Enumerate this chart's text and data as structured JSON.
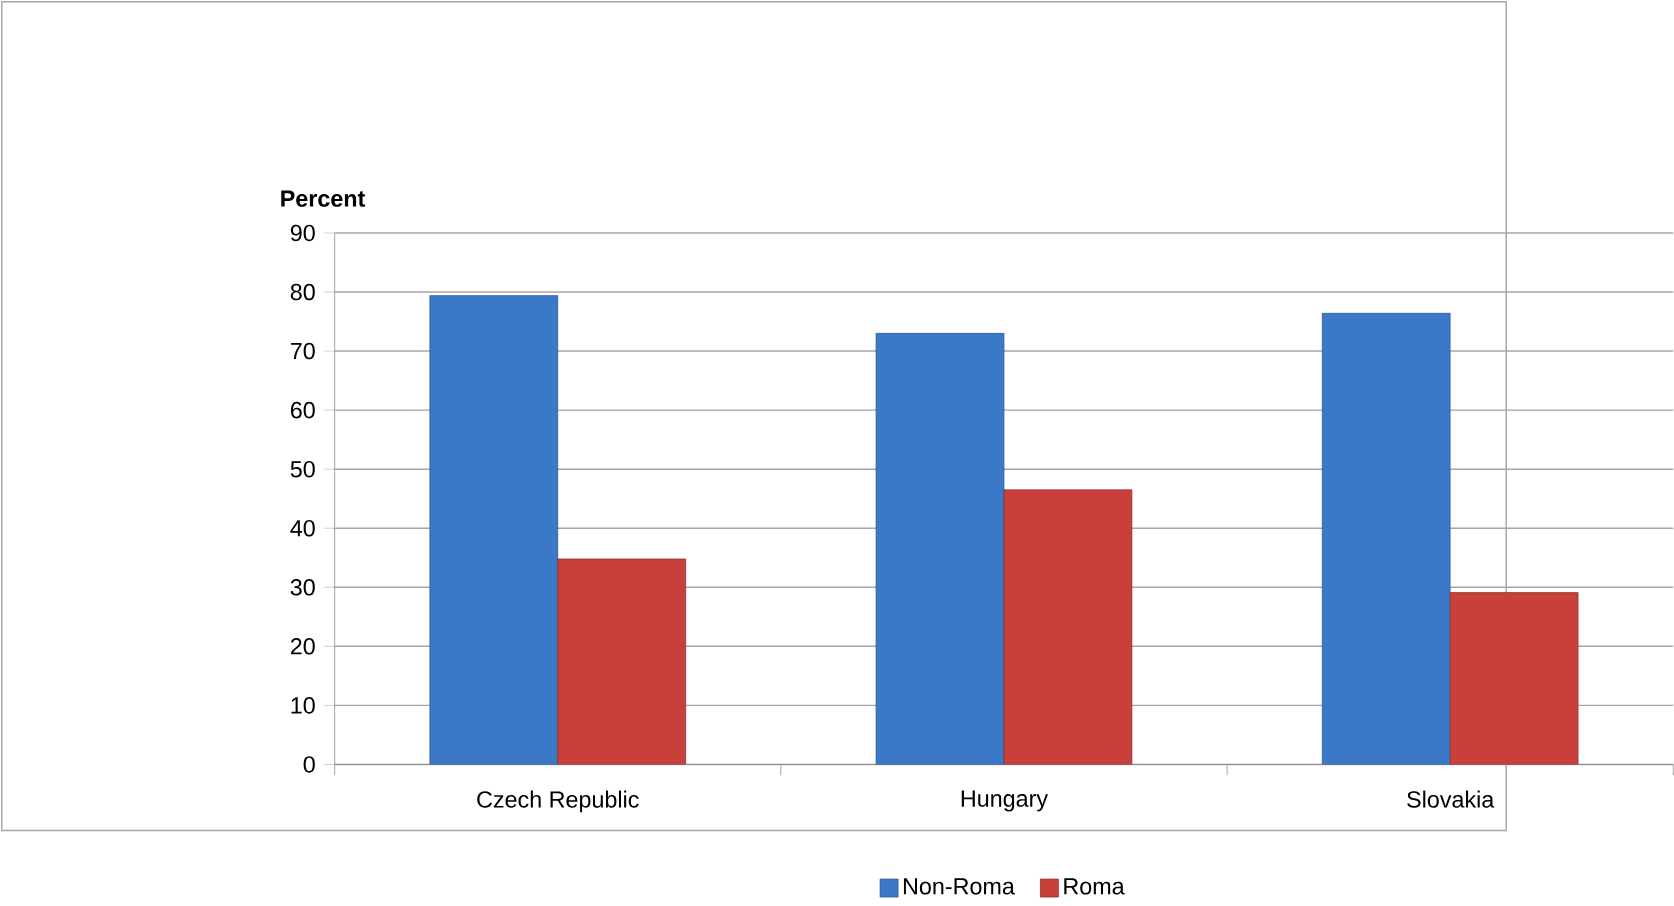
{
  "chart_data": {
    "type": "bar",
    "ylabel": "Percent",
    "categories": [
      "Czech Republic",
      "Hungary",
      "Slovakia"
    ],
    "series": [
      {
        "name": "Non-Roma",
        "color": "#3b78c8",
        "values": [
          79.4,
          73,
          76.4
        ]
      },
      {
        "name": "Roma",
        "color": "#c9403b",
        "values": [
          34.8,
          46.5,
          29.1
        ]
      }
    ],
    "ylim": [
      0,
      90
    ],
    "yticks": [
      0,
      10,
      20,
      30,
      40,
      50,
      60,
      70,
      80,
      90
    ],
    "grid": "y",
    "legend": "bottom"
  }
}
